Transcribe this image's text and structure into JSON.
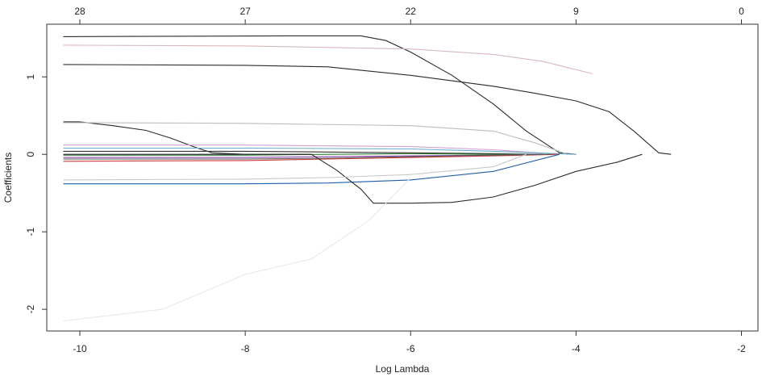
{
  "chart_data": {
    "type": "line",
    "xlabel": "Log Lambda",
    "ylabel": "Coefficients",
    "xlim": [
      -10.4,
      -1.8
    ],
    "ylim": [
      -2.28,
      1.68
    ],
    "x_ticks": [
      -10,
      -8,
      -6,
      -4,
      -2
    ],
    "x_tick_labels": [
      "-10",
      "-8",
      "-6",
      "-4",
      "-2"
    ],
    "y_ticks": [
      -2,
      -1,
      0,
      1
    ],
    "y_tick_labels": [
      "-2",
      "-1",
      "0",
      "1"
    ],
    "top_ticks": [
      -10,
      -8,
      -6,
      -4,
      -2
    ],
    "top_tick_labels": [
      "28",
      "27",
      "22",
      "9",
      "0"
    ],
    "grid": false,
    "legend": "none",
    "series": [
      {
        "color": "#2b2b2b",
        "x": [
          -10.2,
          -7.5,
          -6.6,
          -6.3,
          -6.0,
          -5.5,
          -5.0,
          -4.6,
          -4.2,
          -4.0
        ],
        "y": [
          1.52,
          1.53,
          1.53,
          1.47,
          1.32,
          1.02,
          0.65,
          0.3,
          0.02,
          0.0
        ]
      },
      {
        "color": "#d8b8b8",
        "x": [
          -10.2,
          -8.0,
          -6.0,
          -5.0,
          -4.4,
          -3.8
        ],
        "y": [
          1.41,
          1.4,
          1.36,
          1.29,
          1.2,
          1.04
        ]
      },
      {
        "color": "#2b2b2b",
        "x": [
          -10.2,
          -8.0,
          -7.0,
          -6.0,
          -5.0,
          -4.5,
          -4.0,
          -3.6,
          -3.3,
          -3.0,
          -2.85
        ],
        "y": [
          1.16,
          1.15,
          1.13,
          1.02,
          0.88,
          0.79,
          0.69,
          0.55,
          0.3,
          0.02,
          0.0
        ]
      },
      {
        "color": "#2b2b2b",
        "x": [
          -10.2,
          -10.0,
          -9.6,
          -9.2,
          -8.9,
          -8.6,
          -8.4,
          -8.0,
          -7.5,
          -7.2
        ],
        "y": [
          0.42,
          0.42,
          0.37,
          0.31,
          0.21,
          0.09,
          0.02,
          0.0,
          0.0,
          0.0
        ]
      },
      {
        "color": "#bdbdbd",
        "x": [
          -10.2,
          -8.0,
          -6.0,
          -5.0,
          -4.5,
          -4.1
        ],
        "y": [
          0.41,
          0.4,
          0.37,
          0.3,
          0.15,
          0.0
        ]
      },
      {
        "color": "#d0a0d0",
        "x": [
          -10.2,
          -8.0,
          -6.0,
          -5.0,
          -4.2
        ],
        "y": [
          0.12,
          0.12,
          0.1,
          0.06,
          0.0
        ]
      },
      {
        "color": "#66aacc",
        "x": [
          -10.2,
          -8.0,
          -6.0,
          -5.0,
          -4.0
        ],
        "y": [
          0.08,
          0.08,
          0.07,
          0.04,
          0.0
        ]
      },
      {
        "color": "#333333",
        "x": [
          -10.2,
          -8.0,
          -7.0,
          -6.0,
          -5.0,
          -4.4
        ],
        "y": [
          0.04,
          0.04,
          0.03,
          0.02,
          0.01,
          0.0
        ]
      },
      {
        "color": "#2e7d32",
        "x": [
          -10.2,
          -8.0,
          -7.0,
          -6.0,
          -5.0,
          -4.5
        ],
        "y": [
          -0.01,
          -0.01,
          0.0,
          0.01,
          0.0,
          0.0
        ]
      },
      {
        "color": "#8e44ad",
        "x": [
          -10.2,
          -8.0,
          -7.0,
          -6.0,
          -5.0,
          -4.5
        ],
        "y": [
          -0.04,
          -0.04,
          -0.03,
          -0.02,
          -0.01,
          0.0
        ]
      },
      {
        "color": "#d33a3a",
        "x": [
          -10.2,
          -8.0,
          -7.0,
          -6.0,
          -5.0,
          -4.2
        ],
        "y": [
          -0.09,
          -0.08,
          -0.06,
          -0.04,
          -0.02,
          0.0
        ]
      },
      {
        "color": "#555555",
        "x": [
          -10.2,
          -8.0,
          -7.0,
          -6.0,
          -5.0,
          -4.3
        ],
        "y": [
          -0.06,
          -0.06,
          -0.05,
          -0.03,
          -0.01,
          0.0
        ]
      },
      {
        "color": "#1f5fa8",
        "x": [
          -10.2,
          -9.0,
          -8.0,
          -7.0,
          -6.0,
          -5.0,
          -4.2
        ],
        "y": [
          -0.38,
          -0.38,
          -0.38,
          -0.37,
          -0.33,
          -0.22,
          0.0
        ]
      },
      {
        "color": "#2b2b2b",
        "x": [
          -10.2,
          -7.2,
          -6.9,
          -6.6,
          -6.45,
          -6.0,
          -5.5,
          -5.0,
          -4.5,
          -4.0,
          -3.5,
          -3.2
        ],
        "y": [
          0.0,
          0.0,
          -0.2,
          -0.45,
          -0.63,
          -0.63,
          -0.62,
          -0.55,
          -0.4,
          -0.22,
          -0.1,
          0.0
        ]
      },
      {
        "color": "#c9c9c9",
        "x": [
          -10.2,
          -8.0,
          -7.0,
          -6.0,
          -5.0,
          -4.6
        ],
        "y": [
          -0.33,
          -0.32,
          -0.3,
          -0.26,
          -0.16,
          0.0
        ]
      },
      {
        "color": "#e8e8e8",
        "x": [
          -10.2,
          -9.8,
          -9.0,
          -8.0,
          -7.2,
          -6.5,
          -6.0
        ],
        "y": [
          -2.15,
          -2.1,
          -2.0,
          -1.55,
          -1.35,
          -0.85,
          -0.3
        ]
      }
    ]
  }
}
